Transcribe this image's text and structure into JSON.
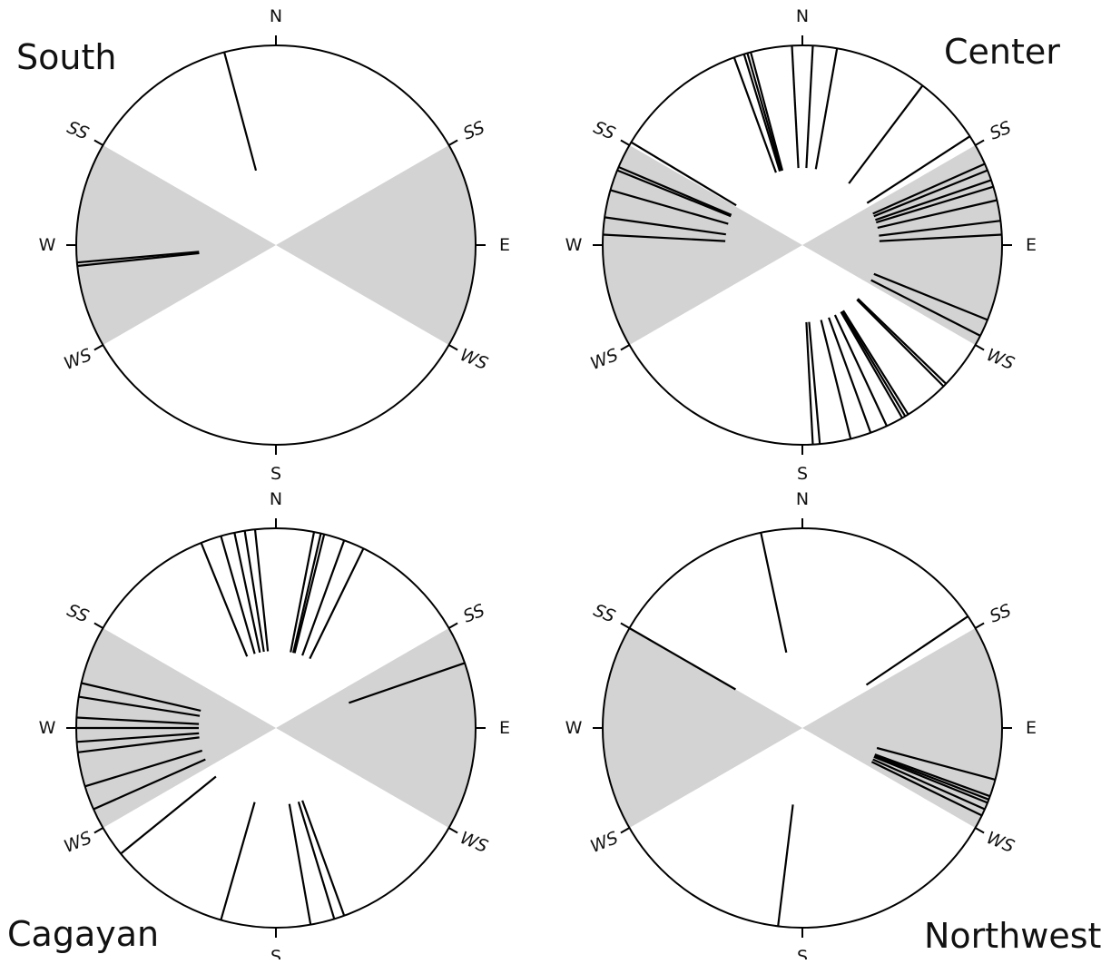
{
  "colors": {
    "season_wedge": "#d3d3d3",
    "outline": "#000000",
    "background": "#ffffff"
  },
  "panels": [
    {
      "title": "South",
      "labels": {
        "n": "N",
        "s": "S",
        "e": "E",
        "w": "W",
        "ss_left": "SS",
        "ss_right": "SS",
        "ws_left": "WS",
        "ws_right": "WS"
      },
      "lines_bearing_deg": [
        345,
        265,
        264
      ]
    },
    {
      "title": "Center",
      "labels": {
        "n": "N",
        "s": "S",
        "e": "E",
        "w": "W",
        "ss_left": "SS",
        "ss_right": "SS",
        "ws_left": "WS",
        "ws_right": "WS"
      },
      "lines_bearing_deg": [
        340,
        343,
        344,
        345,
        357,
        3,
        10,
        37,
        57,
        66,
        68,
        71,
        73,
        77,
        83,
        87,
        112,
        117,
        134,
        135,
        148,
        149,
        150,
        155,
        160,
        166,
        175,
        177,
        273,
        278,
        286,
        292,
        293,
        301
      ]
    },
    {
      "title": "Cagayan",
      "labels": {
        "n": "N",
        "s": "S",
        "e": "E",
        "w": "W",
        "ss_left": "SS",
        "ss_right": "SS",
        "ws_left": "WS",
        "ws_right": "WS"
      },
      "lines_bearing_deg": [
        338,
        344,
        348,
        351,
        354,
        11,
        13,
        14,
        20,
        26,
        71,
        160,
        163,
        170,
        196,
        231,
        246,
        253,
        263,
        266,
        270,
        273,
        279,
        283
      ]
    },
    {
      "title": "Northwest",
      "labels": {
        "n": "N",
        "s": "S",
        "e": "E",
        "w": "W",
        "ss_left": "SS",
        "ss_right": "SS",
        "ws_left": "WS",
        "ws_right": "WS"
      },
      "lines_bearing_deg": [
        348,
        56,
        105,
        110,
        111,
        112,
        114,
        116,
        187,
        300
      ]
    }
  ]
}
